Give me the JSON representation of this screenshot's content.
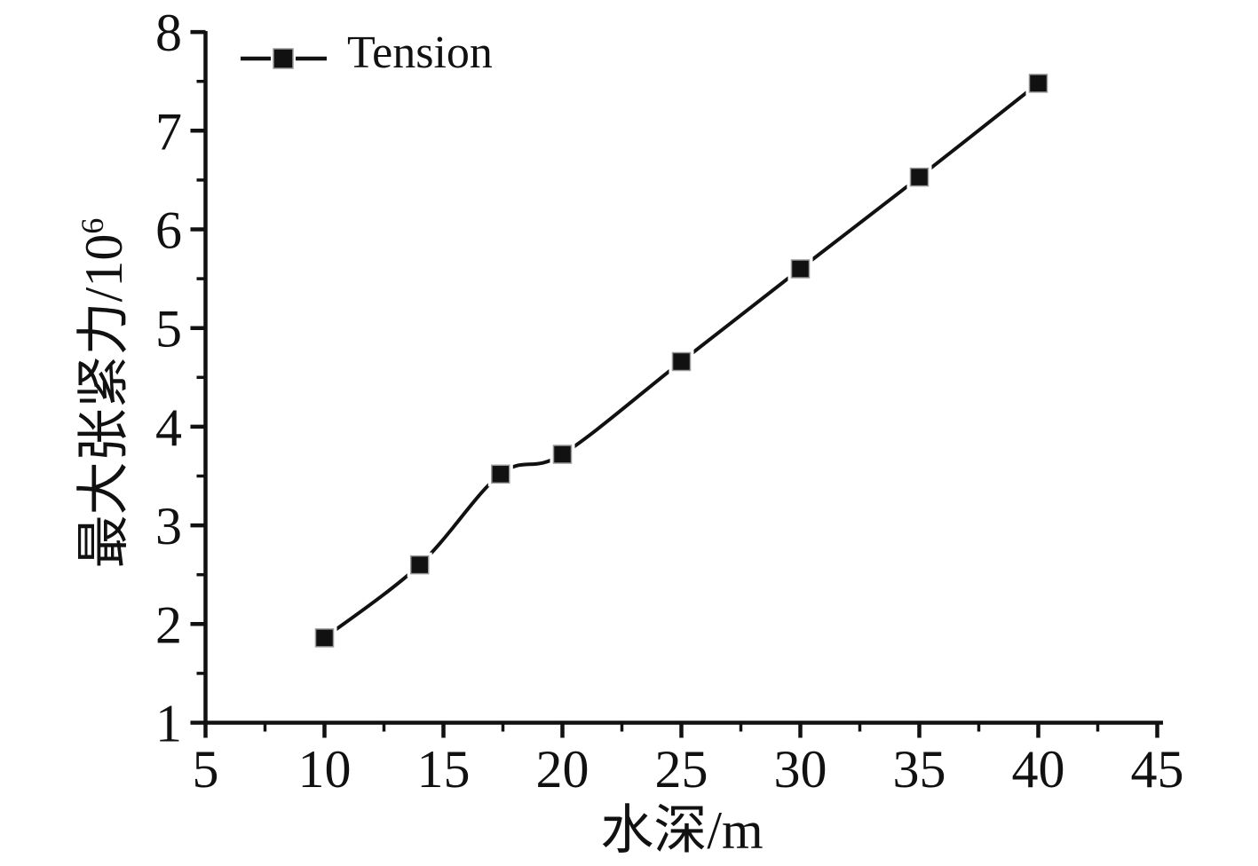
{
  "chart_data": {
    "type": "line",
    "title": "",
    "xlabel": "水深/m",
    "ylabel": "最大张紧力/10⁶",
    "ylabel_main": "最大张紧力/10",
    "ylabel_superscript": "6",
    "xlim": [
      5,
      45
    ],
    "ylim": [
      1,
      8
    ],
    "x_major_ticks": [
      5,
      10,
      15,
      20,
      25,
      30,
      35,
      40,
      45
    ],
    "x_minor_tick_step": 2.5,
    "y_major_ticks": [
      1,
      2,
      3,
      4,
      5,
      6,
      7,
      8
    ],
    "y_minor_tick_step": 0.5,
    "grid": false,
    "legend": {
      "position": "top-left-inside",
      "entries": [
        {
          "label": "Tension",
          "marker": "filled-square-on-line"
        }
      ]
    },
    "series": [
      {
        "name": "Tension",
        "line_style": "smooth",
        "marker": "filled-square",
        "points": [
          {
            "x": 10,
            "y": 1.86
          },
          {
            "x": 14,
            "y": 2.6
          },
          {
            "x": 17.4,
            "y": 3.52
          },
          {
            "x": 20,
            "y": 3.72
          },
          {
            "x": 25,
            "y": 4.66
          },
          {
            "x": 30,
            "y": 5.6
          },
          {
            "x": 35,
            "y": 6.53
          },
          {
            "x": 40,
            "y": 7.48
          }
        ]
      }
    ],
    "colors": {
      "line": "#111111",
      "marker_fill": "#111111",
      "marker_edge": "#999999",
      "axis": "#111111",
      "text": "#111111",
      "background": "#ffffff"
    }
  }
}
